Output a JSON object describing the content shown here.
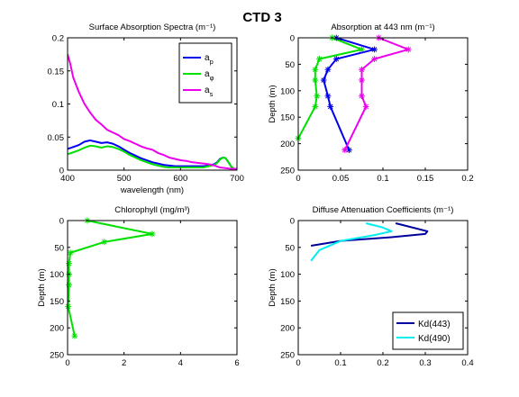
{
  "figure_title": "CTD 3",
  "chart_data": [
    {
      "type": "line",
      "title": "Surface Absorption Spectra (m⁻¹)",
      "xlabel": "wavelength (nm)",
      "ylabel": "",
      "xlim": [
        400,
        700
      ],
      "ylim": [
        0,
        0.2
      ],
      "xticks": [
        400,
        500,
        600,
        700
      ],
      "yticks": [
        0,
        0.05,
        0.1,
        0.15,
        0.2
      ],
      "xtick_labels": [
        "400",
        "500",
        "600",
        "700"
      ],
      "ytick_labels": [
        "0",
        "0.05",
        "0.1",
        "0.15",
        "0.2"
      ],
      "legend": "top-right",
      "series": [
        {
          "name": "a_p",
          "legend_main": "a",
          "legend_sub": "p",
          "color": "#0000ee",
          "marker": "none",
          "x": [
            400,
            410,
            420,
            430,
            440,
            450,
            460,
            470,
            480,
            490,
            500,
            510,
            520,
            530,
            540,
            550,
            560,
            570,
            580,
            590,
            600,
            610,
            620,
            630,
            640,
            650,
            660,
            665,
            670,
            675,
            680,
            685,
            690,
            695,
            700
          ],
          "y": [
            0.032,
            0.035,
            0.038,
            0.043,
            0.045,
            0.043,
            0.041,
            0.042,
            0.04,
            0.036,
            0.031,
            0.026,
            0.022,
            0.018,
            0.015,
            0.012,
            0.01,
            0.008,
            0.007,
            0.006,
            0.006,
            0.006,
            0.006,
            0.006,
            0.006,
            0.007,
            0.009,
            0.012,
            0.017,
            0.019,
            0.018,
            0.012,
            0.005,
            0.002,
            0.001
          ]
        },
        {
          "name": "a_φ",
          "legend_main": "a",
          "legend_sub": "φ",
          "color": "#00e000",
          "marker": "none",
          "x": [
            400,
            410,
            420,
            430,
            440,
            450,
            460,
            470,
            480,
            490,
            500,
            510,
            520,
            530,
            540,
            550,
            560,
            570,
            580,
            590,
            600,
            610,
            620,
            630,
            640,
            650,
            660,
            665,
            670,
            675,
            680,
            685,
            690,
            695,
            700
          ],
          "y": [
            0.024,
            0.027,
            0.03,
            0.034,
            0.037,
            0.036,
            0.034,
            0.036,
            0.035,
            0.032,
            0.028,
            0.023,
            0.019,
            0.015,
            0.012,
            0.009,
            0.007,
            0.005,
            0.004,
            0.004,
            0.004,
            0.004,
            0.004,
            0.004,
            0.004,
            0.006,
            0.008,
            0.011,
            0.016,
            0.019,
            0.018,
            0.012,
            0.005,
            0.002,
            0.001
          ]
        },
        {
          "name": "a_s",
          "legend_main": "a",
          "legend_sub": "s",
          "color": "#ee00ee",
          "marker": "none",
          "x": [
            400,
            405,
            410,
            420,
            430,
            440,
            450,
            460,
            470,
            480,
            490,
            500,
            510,
            520,
            530,
            540,
            550,
            560,
            570,
            580,
            590,
            600,
            610,
            620,
            630,
            640,
            650,
            660,
            670,
            680,
            690,
            700
          ],
          "y": [
            0.175,
            0.16,
            0.14,
            0.118,
            0.1,
            0.087,
            0.076,
            0.069,
            0.061,
            0.057,
            0.053,
            0.047,
            0.044,
            0.04,
            0.036,
            0.033,
            0.031,
            0.026,
            0.023,
            0.019,
            0.017,
            0.015,
            0.014,
            0.012,
            0.011,
            0.01,
            0.009,
            0.007,
            0.004,
            0.003,
            0.002,
            0.002
          ]
        }
      ]
    },
    {
      "type": "line",
      "title": "Absorption at 443 nm (m⁻¹)",
      "xlabel": "",
      "ylabel": "Depth (m)",
      "xlim": [
        0,
        0.2
      ],
      "ylim": [
        0,
        250
      ],
      "y_reversed": true,
      "xticks": [
        0,
        0.05,
        0.1,
        0.15,
        0.2
      ],
      "yticks": [
        0,
        50,
        100,
        150,
        200,
        250
      ],
      "xtick_labels": [
        "0",
        "0.05",
        "0.1",
        "0.15",
        "0.2"
      ],
      "ytick_labels": [
        "0",
        "50",
        "100",
        "150",
        "200",
        "250"
      ],
      "series": [
        {
          "color": "#0000ee",
          "marker": "star",
          "x": [
            0.045,
            0.09,
            0.045,
            0.035,
            0.03,
            0.035,
            0.038,
            0.06
          ],
          "y": [
            0,
            22,
            40,
            60,
            80,
            110,
            130,
            212
          ]
        },
        {
          "color": "#00e000",
          "marker": "star",
          "x": [
            0.04,
            0.075,
            0.025,
            0.02,
            0.02,
            0.022,
            0.02,
            0.0
          ],
          "y": [
            0,
            22,
            40,
            60,
            80,
            110,
            130,
            190
          ]
        },
        {
          "color": "#ee00ee",
          "marker": "star",
          "x": [
            0.095,
            0.13,
            0.09,
            0.075,
            0.075,
            0.075,
            0.08,
            0.055
          ],
          "y": [
            0,
            22,
            40,
            60,
            80,
            110,
            130,
            212
          ]
        }
      ]
    },
    {
      "type": "line",
      "title": "Chlorophyll (mg/m³)",
      "xlabel": "",
      "ylabel": "Depth (m)",
      "xlim": [
        0,
        6
      ],
      "ylim": [
        0,
        250
      ],
      "y_reversed": true,
      "xticks": [
        0,
        2,
        4,
        6
      ],
      "yticks": [
        0,
        50,
        100,
        150,
        200,
        250
      ],
      "xtick_labels": [
        "0",
        "2",
        "4",
        "6"
      ],
      "ytick_labels": [
        "0",
        "50",
        "100",
        "150",
        "200",
        "250"
      ],
      "series": [
        {
          "color": "#00e000",
          "marker": "star",
          "x": [
            0.7,
            3.0,
            1.3,
            0.1,
            0.05,
            0.05,
            0.05,
            0.02,
            0.25
          ],
          "y": [
            0,
            25,
            40,
            60,
            80,
            100,
            120,
            160,
            215
          ]
        }
      ]
    },
    {
      "type": "line",
      "title": "Diffuse Attenuation Coefficients (m⁻¹)",
      "xlabel": "",
      "ylabel": "Depth (m)",
      "xlim": [
        0,
        0.4
      ],
      "ylim": [
        0,
        250
      ],
      "y_reversed": true,
      "xticks": [
        0,
        0.1,
        0.2,
        0.3,
        0.4
      ],
      "yticks": [
        0,
        50,
        100,
        150,
        200,
        250
      ],
      "xtick_labels": [
        "0",
        "0.1",
        "0.2",
        "0.3",
        "0.4"
      ],
      "ytick_labels": [
        "0",
        "50",
        "100",
        "150",
        "200",
        "250"
      ],
      "legend": "bottom-right",
      "series": [
        {
          "name": "Kd(443)",
          "color": "#0000a0",
          "marker": "none",
          "x": [
            0.23,
            0.27,
            0.305,
            0.3,
            0.22,
            0.1,
            0.03
          ],
          "y": [
            5,
            13,
            20,
            25,
            31,
            38,
            47
          ]
        },
        {
          "name": "Kd(490)",
          "color": "#00eeee",
          "marker": "none",
          "x": [
            0.16,
            0.2,
            0.22,
            0.18,
            0.1,
            0.05,
            0.03
          ],
          "y": [
            5,
            13,
            20,
            27,
            38,
            55,
            75
          ]
        }
      ]
    }
  ]
}
